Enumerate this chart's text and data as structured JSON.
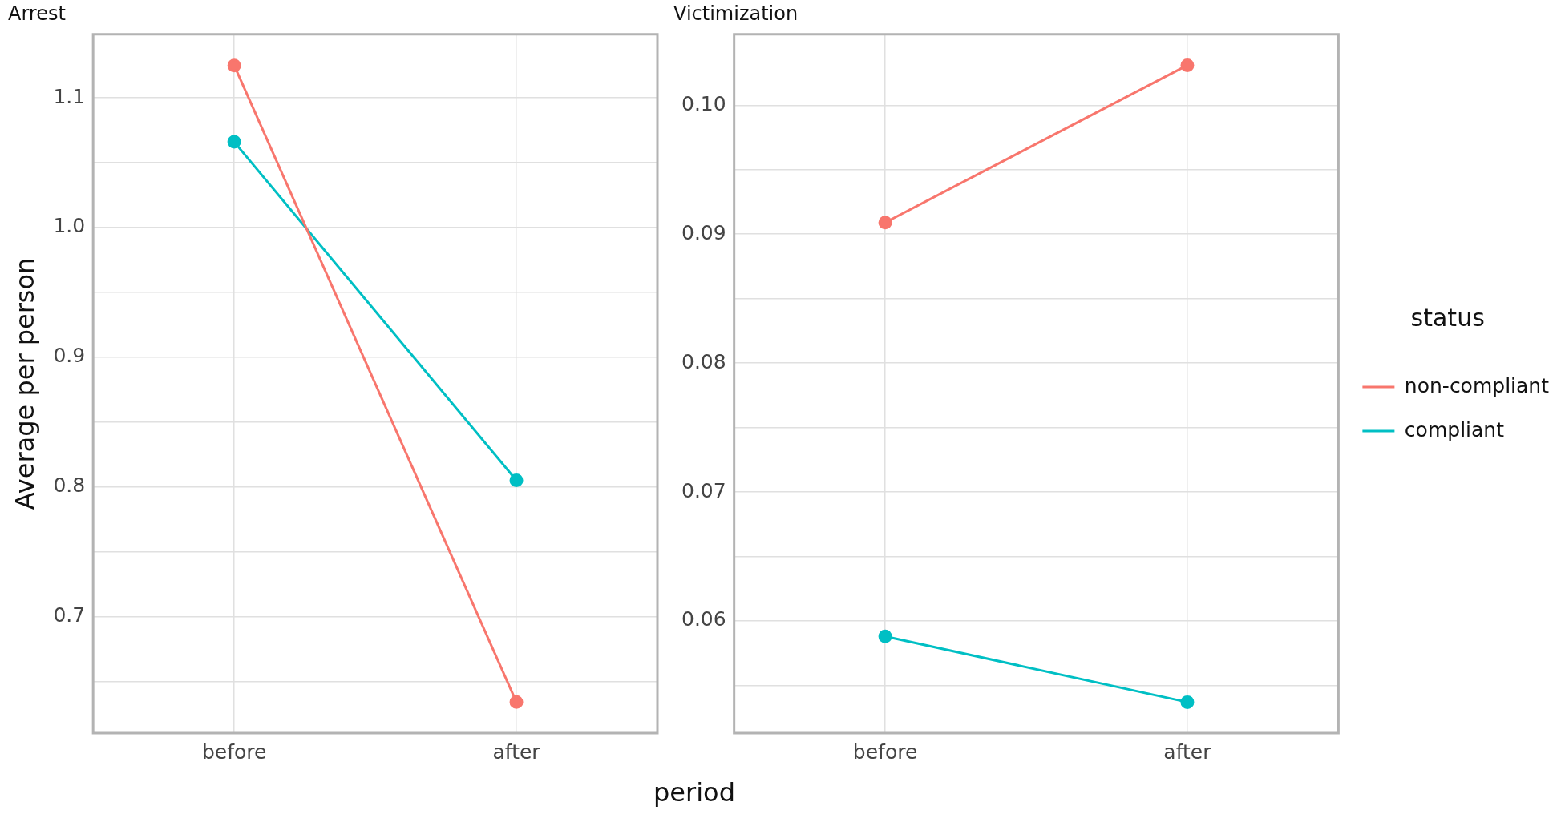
{
  "chart_data": [
    {
      "type": "line",
      "title": "Arrest",
      "xlabel": "period",
      "ylabel": "Average per person",
      "categories": [
        "before",
        "after"
      ],
      "series": [
        {
          "color": "#f8766d",
          "values": [
            1.125,
            0.634
          ]
        },
        {
          "color": "#00bfc4",
          "values": [
            1.066,
            0.805
          ]
        }
      ],
      "ylim": [
        0.61,
        1.149
      ],
      "yticks": [
        {
          "value": 0.65,
          "label": null
        },
        0.7,
        {
          "value": 0.75,
          "label": null
        },
        0.8,
        {
          "value": 0.85,
          "label": null
        },
        0.9,
        {
          "value": 0.95,
          "label": null
        },
        {
          "value": 1.0,
          "label": "1.0"
        },
        {
          "value": 1.05,
          "label": null
        },
        1.1
      ],
      "grid": true,
      "marker": "circle",
      "line_style": "solid",
      "legend": false
    },
    {
      "type": "line",
      "title": "Victimization",
      "legend_title": "status",
      "categories": [
        "before",
        "after"
      ],
      "series": [
        {
          "name": "non-compliant",
          "color": "#f8766d",
          "values": [
            0.0909,
            0.1031
          ]
        },
        {
          "name": "compliant",
          "color": "#00bfc4",
          "values": [
            0.0588,
            0.0537
          ]
        }
      ],
      "ylim": [
        0.0513,
        0.1055
      ],
      "yticks": [
        {
          "value": 0.055,
          "label": null
        },
        0.06,
        {
          "value": 0.065,
          "label": null
        },
        0.07,
        {
          "value": 0.075,
          "label": null
        },
        0.08,
        {
          "value": 0.085,
          "label": null
        },
        0.09,
        {
          "value": 0.095,
          "label": null
        },
        {
          "value": 0.1,
          "label": "0.10"
        }
      ],
      "grid": true,
      "marker": "circle",
      "line_style": "solid",
      "legend": "right"
    }
  ]
}
